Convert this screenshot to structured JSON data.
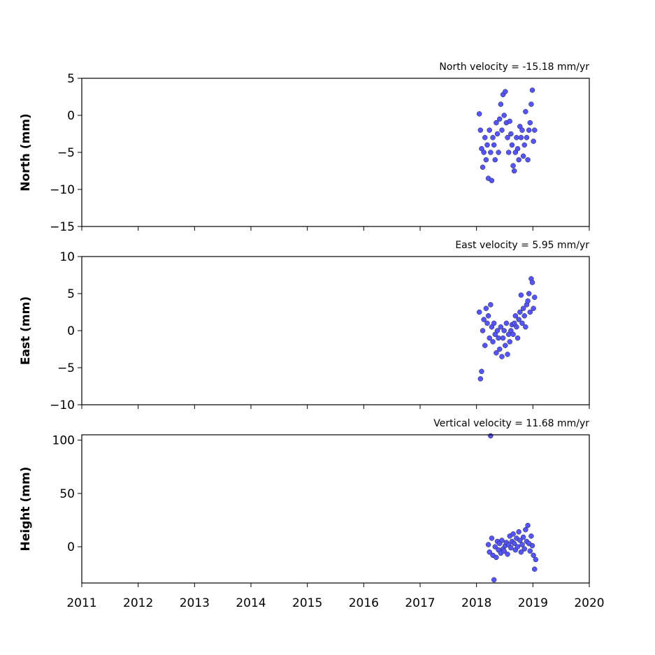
{
  "chart_data": [
    {
      "type": "scatter",
      "title": "North velocity = -15.18 mm/yr",
      "ylabel": "North (mm)",
      "color": "#5555ff",
      "xlim": [
        2011,
        2020
      ],
      "ylim": [
        -15,
        5
      ],
      "xticks": [
        2011,
        2012,
        2013,
        2014,
        2015,
        2016,
        2017,
        2018,
        2019,
        2020
      ],
      "yticks": [
        {
          "value": -15,
          "label": "−15"
        },
        {
          "value": -10,
          "label": "−10"
        },
        {
          "value": -5,
          "label": "−5"
        },
        0,
        5
      ],
      "x": [
        2018.05,
        2018.07,
        2018.09,
        2018.11,
        2018.13,
        2018.15,
        2018.17,
        2018.19,
        2018.21,
        2018.23,
        2018.25,
        2018.27,
        2018.29,
        2018.31,
        2018.33,
        2018.35,
        2018.37,
        2018.39,
        2018.41,
        2018.43,
        2018.45,
        2018.47,
        2018.49,
        2018.51,
        2018.53,
        2018.55,
        2018.57,
        2018.59,
        2018.61,
        2018.63,
        2018.65,
        2018.67,
        2018.69,
        2018.71,
        2018.73,
        2018.75,
        2018.77,
        2018.79,
        2018.81,
        2018.83,
        2018.85,
        2018.87,
        2018.89,
        2018.91,
        2018.93,
        2018.95,
        2018.97,
        2018.99,
        2019.01,
        2019.03
      ],
      "values": [
        0.2,
        -2,
        -4.5,
        -7,
        -5,
        -3,
        -6,
        -4,
        -8.5,
        -2,
        -5,
        -8.8,
        -3,
        -4,
        -6,
        -1,
        -2.5,
        -5,
        -0.5,
        1.5,
        -2,
        2.8,
        0,
        3.2,
        -1,
        -3,
        -5,
        -0.8,
        -2.5,
        -4,
        -6.8,
        -7.5,
        -5,
        -3,
        -4.5,
        -6,
        -1.5,
        -3,
        -2,
        -5.5,
        -4,
        0.5,
        -3,
        -6,
        -2,
        -1,
        1.5,
        3.4,
        -3.5,
        -2
      ]
    },
    {
      "type": "scatter",
      "title": "East velocity = 5.95 mm/yr",
      "ylabel": "East (mm)",
      "color": "#5555ff",
      "xlim": [
        2011,
        2020
      ],
      "ylim": [
        -10,
        10
      ],
      "xticks": [
        2011,
        2012,
        2013,
        2014,
        2015,
        2016,
        2017,
        2018,
        2019,
        2020
      ],
      "yticks": [
        {
          "value": -10,
          "label": "−10"
        },
        {
          "value": -5,
          "label": "−5"
        },
        0,
        5,
        10
      ],
      "x": [
        2018.05,
        2018.07,
        2018.09,
        2018.11,
        2018.13,
        2018.15,
        2018.17,
        2018.19,
        2018.21,
        2018.23,
        2018.25,
        2018.27,
        2018.29,
        2018.31,
        2018.33,
        2018.35,
        2018.37,
        2018.39,
        2018.41,
        2018.43,
        2018.45,
        2018.47,
        2018.49,
        2018.51,
        2018.53,
        2018.55,
        2018.57,
        2018.59,
        2018.61,
        2018.63,
        2018.65,
        2018.67,
        2018.69,
        2018.71,
        2018.73,
        2018.75,
        2018.77,
        2018.79,
        2018.81,
        2018.83,
        2018.85,
        2018.87,
        2018.89,
        2018.91,
        2018.93,
        2018.95,
        2018.97,
        2018.99,
        2019.01,
        2019.03
      ],
      "values": [
        2.5,
        -6.5,
        -5.5,
        0,
        1.5,
        -2,
        3,
        1,
        2,
        -1,
        3.5,
        0.5,
        -1.5,
        1,
        -0.5,
        -3,
        0,
        -1,
        -2.5,
        0.5,
        -3.5,
        -1,
        0,
        -2,
        1,
        -3.2,
        -0.5,
        -1.5,
        0,
        0.8,
        -0.5,
        1,
        2,
        0.5,
        -1,
        1.5,
        2.5,
        4.8,
        1,
        3,
        2,
        0.5,
        3.5,
        4,
        5,
        2.5,
        7,
        6.5,
        3,
        4.5
      ]
    },
    {
      "type": "scatter",
      "title": "Vertical velocity = 11.68 mm/yr",
      "ylabel": "Height (mm)",
      "color": "#5555ff",
      "xlim": [
        2011,
        2020
      ],
      "ylim": [
        -34,
        105
      ],
      "xticks": [
        2011,
        2012,
        2013,
        2014,
        2015,
        2016,
        2017,
        2018,
        2019,
        2020
      ],
      "yticks": [
        0,
        50,
        100
      ],
      "x": [
        2018.21,
        2018.23,
        2018.25,
        2018.27,
        2018.29,
        2018.31,
        2018.33,
        2018.35,
        2018.37,
        2018.39,
        2018.41,
        2018.43,
        2018.45,
        2018.47,
        2018.49,
        2018.51,
        2018.53,
        2018.55,
        2018.57,
        2018.59,
        2018.61,
        2018.63,
        2018.65,
        2018.67,
        2018.69,
        2018.71,
        2018.73,
        2018.75,
        2018.77,
        2018.79,
        2018.81,
        2018.83,
        2018.85,
        2018.87,
        2018.89,
        2018.91,
        2018.93,
        2018.95,
        2018.97,
        2018.99,
        2019.01,
        2019.03,
        2019.05
      ],
      "values": [
        2,
        -5,
        104,
        8,
        -8,
        -31,
        0,
        -10,
        5,
        -3,
        3,
        -6,
        6,
        -2,
        -4,
        1,
        4,
        -7,
        2,
        10,
        -1,
        5,
        12,
        3,
        -3,
        8,
        0,
        14,
        6,
        -5,
        2,
        9,
        -2,
        16,
        5,
        20,
        3,
        -4,
        10,
        1,
        -8,
        -21,
        -12
      ]
    }
  ]
}
